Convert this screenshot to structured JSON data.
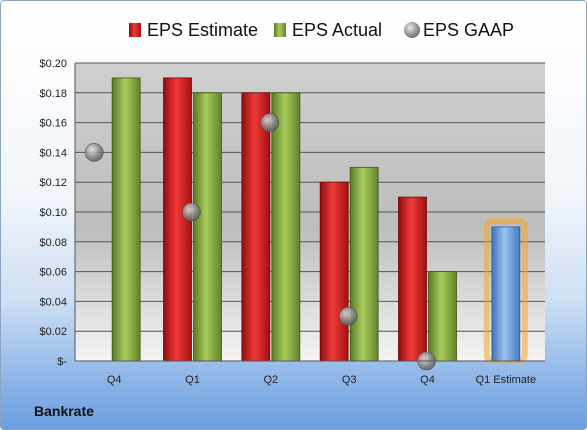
{
  "chart_data": {
    "type": "bar",
    "categories": [
      "Q4",
      "Q1",
      "Q2",
      "Q3",
      "Q4",
      "Q1 Estimate"
    ],
    "series": [
      {
        "name": "EPS Estimate",
        "color": "#cc1a1a",
        "values": [
          null,
          0.19,
          0.18,
          0.12,
          0.11,
          null
        ]
      },
      {
        "name": "EPS Actual",
        "color": "#7fa53a",
        "values": [
          0.19,
          0.18,
          0.18,
          0.13,
          0.06,
          null
        ]
      },
      {
        "name": "EPS GAAP",
        "color": "#9a9a9a",
        "marker": "circle",
        "values": [
          0.14,
          0.1,
          0.16,
          0.03,
          0.0,
          null
        ]
      }
    ],
    "estimate_bar": {
      "category": "Q1 Estimate",
      "value": 0.09,
      "color": "#6a9fdc",
      "glow": "#f5a623"
    },
    "ylim": [
      0,
      0.2
    ],
    "yticks": [
      0,
      0.02,
      0.04,
      0.06,
      0.08,
      0.1,
      0.12,
      0.14,
      0.16,
      0.18,
      0.2
    ],
    "ytick_labels": [
      "$-",
      "$0.02",
      "$0.04",
      "$0.06",
      "$0.08",
      "$0.10",
      "$0.12",
      "$0.14",
      "$0.16",
      "$0.18",
      "$0.20"
    ],
    "grid": true,
    "legend_position": "top"
  },
  "footer": {
    "company": "Bankrate"
  }
}
